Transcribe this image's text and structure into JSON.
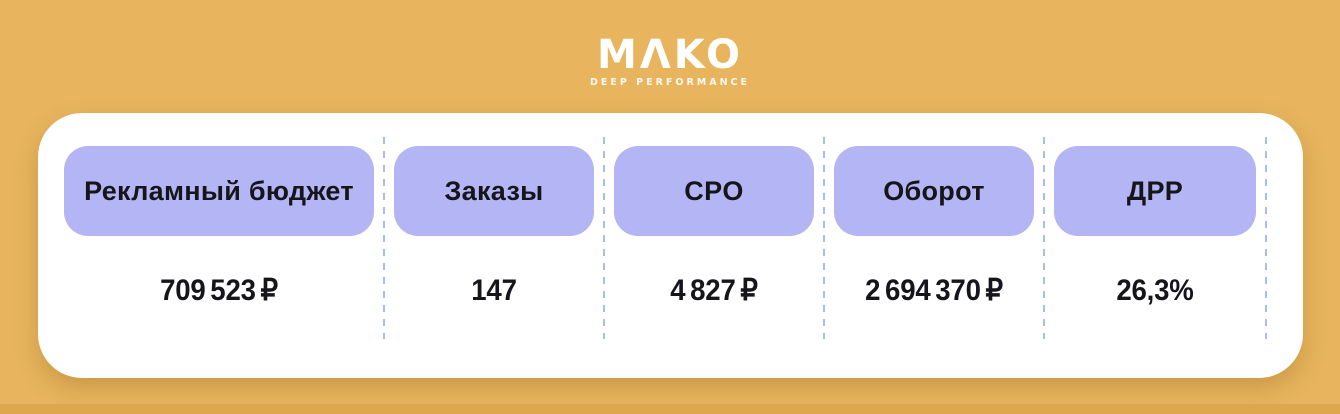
{
  "logo": {
    "brand": "MAKO",
    "display": "MΛKO",
    "tagline": "DEEP PERFORMANCE"
  },
  "metrics": [
    {
      "label": "Рекламный бюджет",
      "value": "709 523 ₽"
    },
    {
      "label": "Заказы",
      "value": "147"
    },
    {
      "label": "CPO",
      "value": "4 827 ₽"
    },
    {
      "label": "Оборот",
      "value": "2 694 370 ₽"
    },
    {
      "label": "ДРР",
      "value": "26,3%"
    }
  ],
  "colors": {
    "background": "#E8B55E",
    "background_bottom_strip": "#DDA750",
    "card": "#FFFFFF",
    "label_pill": "#B4B5F4",
    "text": "#15151A",
    "divider_dashed": "#A8BDEC",
    "logo_text": "#FFFFFF"
  },
  "chart_data": {
    "type": "table",
    "columns": [
      "Рекламный бюджет",
      "Заказы",
      "CPO",
      "Оборот",
      "ДРР"
    ],
    "rows": [
      [
        "709 523 ₽",
        "147",
        "4 827 ₽",
        "2 694 370 ₽",
        "26,3%"
      ]
    ],
    "values_numeric": {
      "ad_budget_rub": 709523,
      "orders": 147,
      "cpo_rub": 4827,
      "revenue_rub": 2694370,
      "drr_percent": 26.3
    }
  }
}
